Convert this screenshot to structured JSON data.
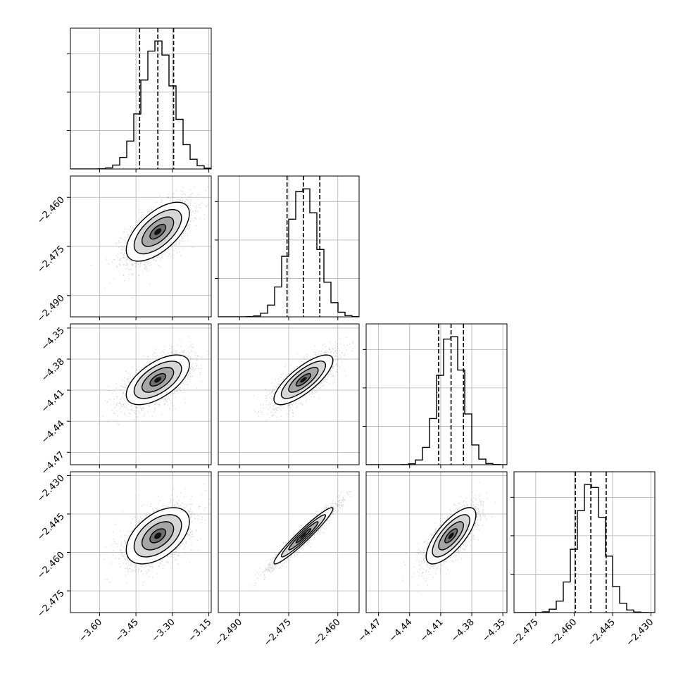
{
  "chart_data": {
    "type": "corner",
    "parameters": 4,
    "grid": true,
    "quantile_lines": "dashed",
    "colors": {
      "hist": "#000000",
      "points": "#7f7f7f",
      "grid": "#b0b0b0"
    },
    "params": [
      {
        "range": [
          -3.72,
          -3.14
        ],
        "ticks": [
          "−3.60",
          "−3.45",
          "−3.30",
          "−3.15"
        ],
        "tick_values": [
          -3.6,
          -3.45,
          -3.3,
          -3.15
        ],
        "mean": -3.36,
        "sigma": 0.065,
        "quantiles": [
          -3.435,
          -3.36,
          -3.295
        ],
        "hist_peak": 3100
      },
      {
        "range": [
          -2.4965,
          -2.4535
        ],
        "ticks": [
          "−2.490",
          "−2.475",
          "−2.460"
        ],
        "tick_values": [
          -2.49,
          -2.475,
          -2.46
        ],
        "mean": -2.4705,
        "sigma": 0.0045,
        "quantiles": [
          -2.4755,
          -2.4705,
          -2.4655
        ],
        "hist_peak": 3000
      },
      {
        "range": [
          -4.482,
          -4.346
        ],
        "ticks": [
          "−4.47",
          "−4.44",
          "−4.41",
          "−4.38",
          "−4.35"
        ],
        "tick_values": [
          -4.47,
          -4.44,
          -4.41,
          -4.38,
          -4.35
        ],
        "mean": -4.4,
        "sigma": 0.012,
        "quantiles": [
          -4.412,
          -4.4,
          -4.388
        ],
        "hist_peak": 3100
      },
      {
        "range": [
          -2.4835,
          -2.4285
        ],
        "ticks": [
          "−2.475",
          "−2.460",
          "−2.445",
          "−2.430"
        ],
        "tick_values": [
          -2.475,
          -2.46,
          -2.445,
          -2.43
        ],
        "mean": -2.4535,
        "sigma": 0.0055,
        "quantiles": [
          -2.4595,
          -2.4535,
          -2.4475
        ],
        "hist_peak": 3000
      }
    ],
    "correlations": {
      "1-0": 0.62,
      "2-0": 0.6,
      "2-1": 0.78,
      "3-0": 0.5,
      "3-1": 0.96,
      "3-2": 0.74
    }
  }
}
